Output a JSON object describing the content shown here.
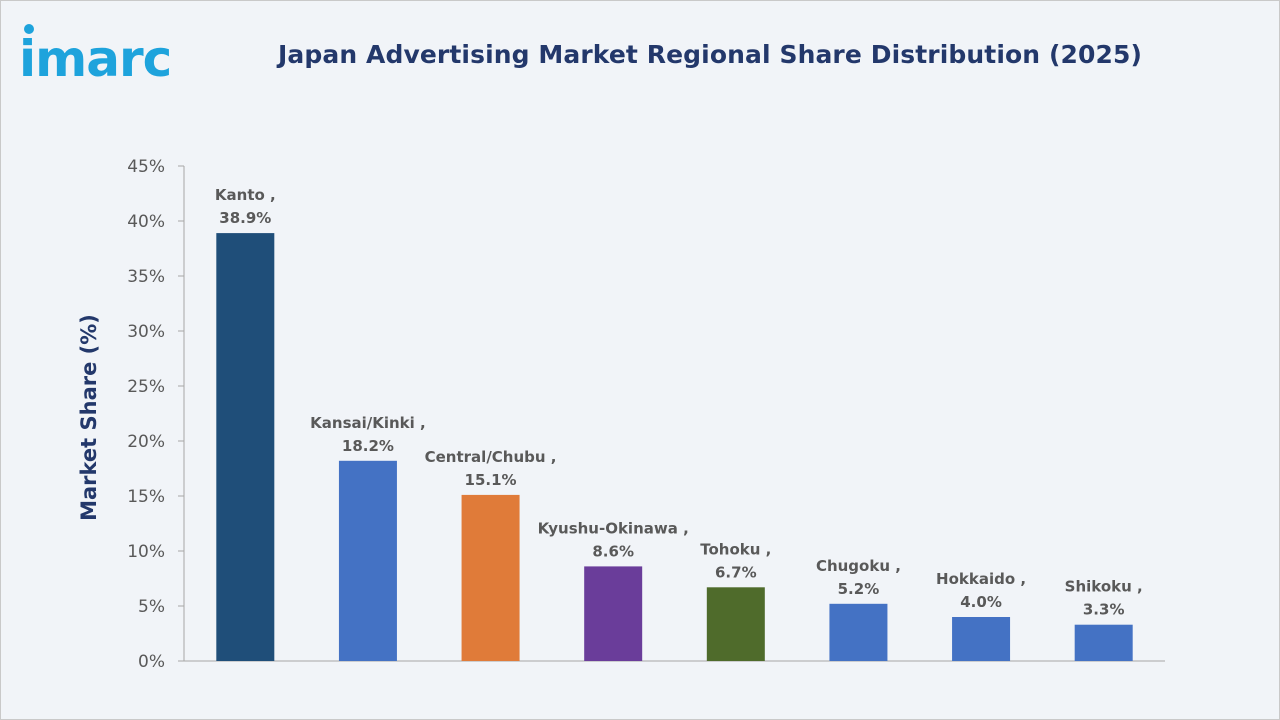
{
  "header": {
    "logo_text": "imarc",
    "title": "Japan Advertising Market Regional Share Distribution (2025)"
  },
  "colors": {
    "brand": "#1ea3dc",
    "title": "#23386b",
    "axis_text": "#595959"
  },
  "chart_data": {
    "type": "bar",
    "title": "Japan Advertising Market Regional Share Distribution (2025)",
    "xlabel": "",
    "ylabel": "Market Share (%)",
    "ylim": [
      0,
      45
    ],
    "yticks": [
      0,
      5,
      10,
      15,
      20,
      25,
      30,
      35,
      40,
      45
    ],
    "ytick_labels": [
      "0%",
      "5%",
      "10%",
      "15%",
      "20%",
      "25%",
      "30%",
      "35%",
      "40%",
      "45%"
    ],
    "grid": false,
    "legend": "none",
    "categories": [
      "Kanto",
      "Kansai/Kinki",
      "Central/Chubu",
      "Kyushu-Okinawa",
      "Tohoku",
      "Chugoku",
      "Hokkaido",
      "Shikoku"
    ],
    "values": [
      38.9,
      18.2,
      15.1,
      8.6,
      6.7,
      5.2,
      4.0,
      3.3
    ],
    "data_labels": [
      [
        "Kanto ,",
        "38.9%"
      ],
      [
        "Kansai/Kinki ,",
        "18.2%"
      ],
      [
        "Central/Chubu ,",
        "15.1%"
      ],
      [
        "Kyushu-Okinawa ,",
        "8.6%"
      ],
      [
        "Tohoku ,",
        "6.7%"
      ],
      [
        "Chugoku ,",
        "5.2%"
      ],
      [
        "Hokkaido ,",
        "4.0%"
      ],
      [
        "Shikoku ,",
        "3.3%"
      ]
    ],
    "bar_colors": [
      "#1f4e79",
      "#4472c4",
      "#e07b39",
      "#6a3d9a",
      "#4f6b2b",
      "#4472c4",
      "#4472c4",
      "#4472c4"
    ]
  }
}
